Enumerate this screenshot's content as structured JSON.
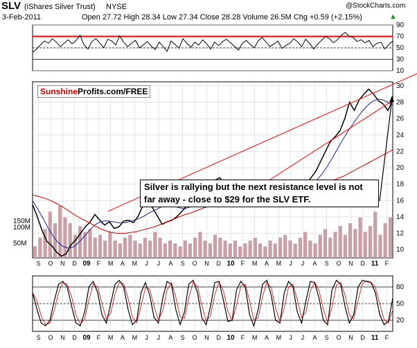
{
  "header": {
    "symbol": "SLV",
    "name": "(iShares Silver Trust)",
    "exchange": "NYSE",
    "date": "3-Feb-2011",
    "ohlc": "Open 27.72  High 28.34  Low 27.34  Close 28.28  Volume 26.5M  Chg +0.59 (+2.15%)",
    "change_arrow": "▲",
    "source": "@StockCharts.com"
  },
  "logo": {
    "part1": "Sunshine",
    "part2": "Profits.com/FREE"
  },
  "annotation": "Silver is rallying but the next resistance level is not far away - close to $29 for the SLV ETF.",
  "colors": {
    "price": "#000000",
    "ma_short": "#1f1f8f",
    "ma_long": "#d40000",
    "trendline": "#ff0000",
    "volume": "#c8a0a8",
    "rsi_fill": "#5a8a5a",
    "grid": "#cccccc"
  },
  "months": [
    "S",
    "O",
    "N",
    "D",
    "09",
    "F",
    "M",
    "A",
    "M",
    "J",
    "J",
    "A",
    "S",
    "O",
    "N",
    "D",
    "10",
    "F",
    "M",
    "A",
    "M",
    "J",
    "J",
    "A",
    "S",
    "O",
    "N",
    "D",
    "11",
    "F"
  ],
  "chart_data": [
    {
      "type": "line",
      "panel": "RSI",
      "ylim": [
        10,
        90
      ],
      "y_ticks": [
        90,
        70,
        50,
        30,
        10
      ],
      "reference_lines": [
        70,
        50,
        30
      ],
      "values": [
        42,
        48,
        55,
        62,
        58,
        66,
        60,
        52,
        58,
        64,
        57,
        63,
        72,
        55,
        48,
        61,
        66,
        58,
        50,
        65,
        62,
        55,
        71,
        60,
        52,
        58,
        63,
        50,
        55,
        61,
        53,
        47,
        60,
        52,
        44,
        62,
        56,
        49,
        66,
        58,
        51,
        60,
        55,
        64,
        57,
        48,
        60,
        54,
        61,
        65,
        59,
        53,
        46,
        58,
        63,
        56,
        50,
        62,
        68,
        60,
        52,
        57,
        62,
        49,
        54,
        58,
        66,
        60,
        52,
        65,
        58,
        48,
        56,
        63,
        70,
        66,
        59,
        64,
        72,
        77,
        70,
        68,
        61,
        64,
        59,
        63,
        52,
        58,
        60,
        48,
        56,
        62
      ]
    },
    {
      "type": "line",
      "panel": "price",
      "y_ticks": [
        10,
        12,
        14,
        16,
        18,
        20,
        22,
        24,
        26,
        28,
        30
      ],
      "series": [
        {
          "values": [
            15.5,
            14.0,
            12.3,
            11.0,
            10.5,
            9.7,
            9.2,
            9.5,
            10.6,
            11.2,
            12.0,
            12.8,
            13.4,
            14.3,
            13.6,
            13.0,
            13.4,
            12.6,
            12.8,
            13.5,
            13.6,
            13.3,
            14.1,
            15.4,
            15.7,
            15.1,
            14.1,
            13.1,
            13.4,
            13.6,
            14.0,
            14.6,
            15.3,
            16.1,
            16.5,
            16.7,
            17.3,
            18.2,
            18.5,
            18.8,
            17.8,
            17.6,
            16.8,
            16.3,
            15.7,
            16.2,
            17.3,
            17.4,
            17.8,
            18.5,
            18.3,
            17.3,
            17.5,
            17.8,
            17.7,
            17.9,
            17.5,
            18.0,
            18.8,
            19.6,
            20.8,
            22.0,
            23.2,
            23.8,
            24.5,
            26.0,
            28.0,
            27.0,
            28.3,
            29.0,
            29.6,
            29.0,
            28.2,
            27.8,
            27.0,
            28.3
          ]
        },
        {
          "values": [
            16.0,
            15.0,
            13.9,
            12.7,
            11.7,
            10.9,
            10.4,
            10.2,
            10.3,
            10.8,
            11.5,
            12.2,
            12.9,
            13.3,
            13.5,
            13.5,
            13.4,
            13.3,
            13.3,
            13.4,
            13.6,
            13.8,
            14.1,
            14.5,
            14.8,
            15.1,
            15.4,
            15.5,
            15.3,
            15.1,
            15.0,
            15.2,
            15.5,
            15.9,
            16.3,
            16.7,
            17.0,
            17.3,
            17.5,
            17.5,
            17.4,
            17.2,
            17.0,
            16.9,
            16.9,
            17.1,
            17.3,
            17.4,
            17.5,
            17.5,
            17.6,
            17.7,
            17.8,
            17.8,
            17.9,
            18.1,
            18.5,
            19.2,
            20.1,
            21.1,
            22.2,
            23.3,
            24.3,
            25.2,
            26.1,
            26.9,
            27.6,
            28.1,
            28.4,
            28.3,
            28.0,
            27.7
          ]
        },
        {
          "values": [
            16.7,
            16.5,
            16.3,
            16.0,
            15.6,
            15.2,
            14.7,
            14.2,
            13.8,
            13.4,
            13.0,
            12.6,
            12.3,
            12.1,
            12.0,
            12.0,
            12.1,
            12.2,
            12.4,
            12.6,
            12.8,
            13.1,
            13.4,
            13.7,
            14.0,
            14.3,
            14.5,
            14.8,
            15.1,
            15.3,
            15.5,
            15.7,
            15.9,
            16.1,
            16.3,
            16.5,
            16.7,
            16.8,
            16.9,
            17.0,
            17.0,
            17.1,
            17.2,
            17.3,
            17.3,
            17.4,
            17.6,
            17.8,
            18.1,
            18.4,
            18.7,
            19.0,
            19.4,
            19.8,
            20.2,
            20.6,
            21.0,
            21.4,
            21.8,
            22.2
          ]
        }
      ],
      "trendlines": [
        "channel upper",
        "channel lower"
      ]
    },
    {
      "type": "bar",
      "panel": "volume",
      "y_ticks": [
        "150M",
        "100M",
        "50M"
      ],
      "values": [
        20,
        35,
        50,
        80,
        60,
        90,
        70,
        60,
        40,
        55,
        45,
        50,
        35,
        40,
        30,
        45,
        30,
        25,
        35,
        40,
        30,
        25,
        35,
        30,
        45,
        35,
        25,
        30,
        25,
        20,
        30,
        25,
        35,
        45,
        30,
        25,
        40,
        35,
        30,
        25,
        30,
        20,
        25,
        30,
        35,
        25,
        20,
        30,
        25,
        35,
        40,
        30,
        25,
        35,
        45,
        30,
        25,
        40,
        50,
        35,
        45,
        55,
        40,
        60,
        50,
        70,
        45,
        55,
        80,
        40,
        60,
        70
      ]
    },
    {
      "type": "line",
      "panel": "stochastic",
      "y_ticks": [
        80,
        50,
        20
      ],
      "reference_lines": [
        80,
        50,
        20
      ],
      "values": [
        70,
        40,
        15,
        10,
        20,
        55,
        85,
        90,
        80,
        45,
        15,
        10,
        35,
        80,
        90,
        70,
        30,
        15,
        50,
        85,
        92,
        80,
        40,
        12,
        20,
        70,
        88,
        65,
        25,
        15,
        60,
        90,
        85,
        40,
        12,
        35,
        85,
        92,
        70,
        25,
        12,
        45,
        88,
        90,
        55,
        18,
        20,
        75,
        90,
        80,
        30,
        10,
        40,
        85,
        92,
        65,
        20,
        15,
        70,
        90,
        80,
        35,
        15,
        55,
        90,
        88,
        60,
        20,
        12,
        75,
        92,
        85,
        45,
        15,
        30,
        80,
        92,
        90,
        88,
        70,
        30,
        12,
        18,
        60
      ]
    }
  ]
}
